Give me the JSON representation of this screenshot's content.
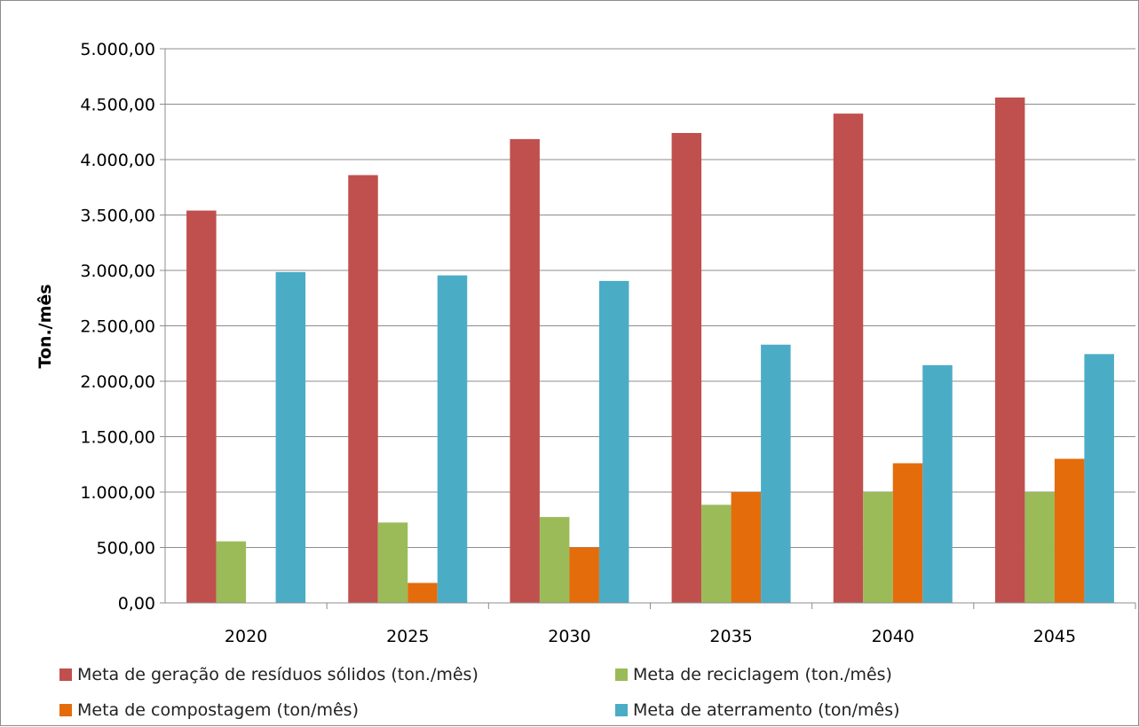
{
  "chart_data": {
    "type": "bar",
    "title": "",
    "xlabel": "",
    "ylabel": "Ton./mês",
    "ylim": [
      0,
      5000
    ],
    "yticks": [
      "0,00",
      "500,00",
      "1.000,00",
      "1.500,00",
      "2.000,00",
      "2.500,00",
      "3.000,00",
      "3.500,00",
      "4.000,00",
      "4.500,00",
      "5.000,00"
    ],
    "categories": [
      "2020",
      "2025",
      "2030",
      "2035",
      "2040",
      "2045"
    ],
    "grid": true,
    "legend_position": "bottom",
    "series": [
      {
        "name": "Meta de geração de resíduos sólidos (ton./mês)",
        "color": "#c0504d",
        "values": [
          3540,
          3860,
          4185,
          4240,
          4415,
          4560
        ]
      },
      {
        "name": "Meta de reciclagem (ton./mês)",
        "color": "#9bbb59",
        "values": [
          555,
          725,
          775,
          885,
          1000,
          1000
        ]
      },
      {
        "name": "Meta de compostagem (ton/mês)",
        "color": "#e46c0a",
        "values": [
          0,
          180,
          500,
          1000,
          1260,
          1300
        ]
      },
      {
        "name": "Meta de aterramento (ton/mês)",
        "color": "#4bacc6",
        "values": [
          2985,
          2955,
          2905,
          2330,
          2145,
          2245
        ]
      }
    ]
  }
}
